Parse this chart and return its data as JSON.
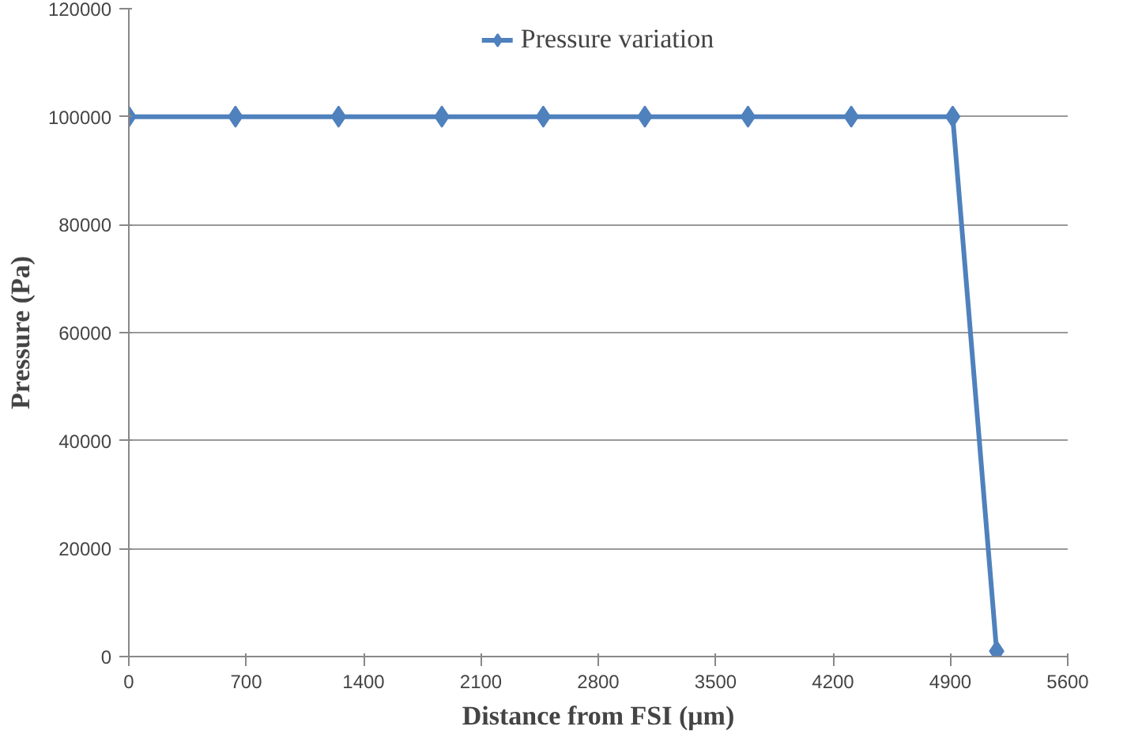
{
  "chart_data": {
    "type": "line",
    "xlabel": "Distance from FSI (μm)",
    "ylabel": "Pressure (Pa)",
    "x": [
      0,
      636,
      1251,
      1867,
      2472,
      3078,
      3693,
      4309,
      4914,
      5176
    ],
    "series": [
      {
        "name": "Pressure variation",
        "color": "#4f81bd",
        "values": [
          100000,
          100000,
          100000,
          100000,
          100000,
          100000,
          100000,
          100000,
          100000,
          1000
        ]
      }
    ],
    "xlim": [
      0,
      5600
    ],
    "xticks": [
      0,
      700,
      1400,
      2100,
      2800,
      3500,
      4200,
      4900,
      5600
    ],
    "ylim": [
      0,
      120000
    ],
    "yticks": [
      0,
      20000,
      40000,
      60000,
      80000,
      100000,
      120000
    ],
    "grid": "y",
    "legend": "top",
    "marker": "diamond",
    "line_style": "solid"
  }
}
